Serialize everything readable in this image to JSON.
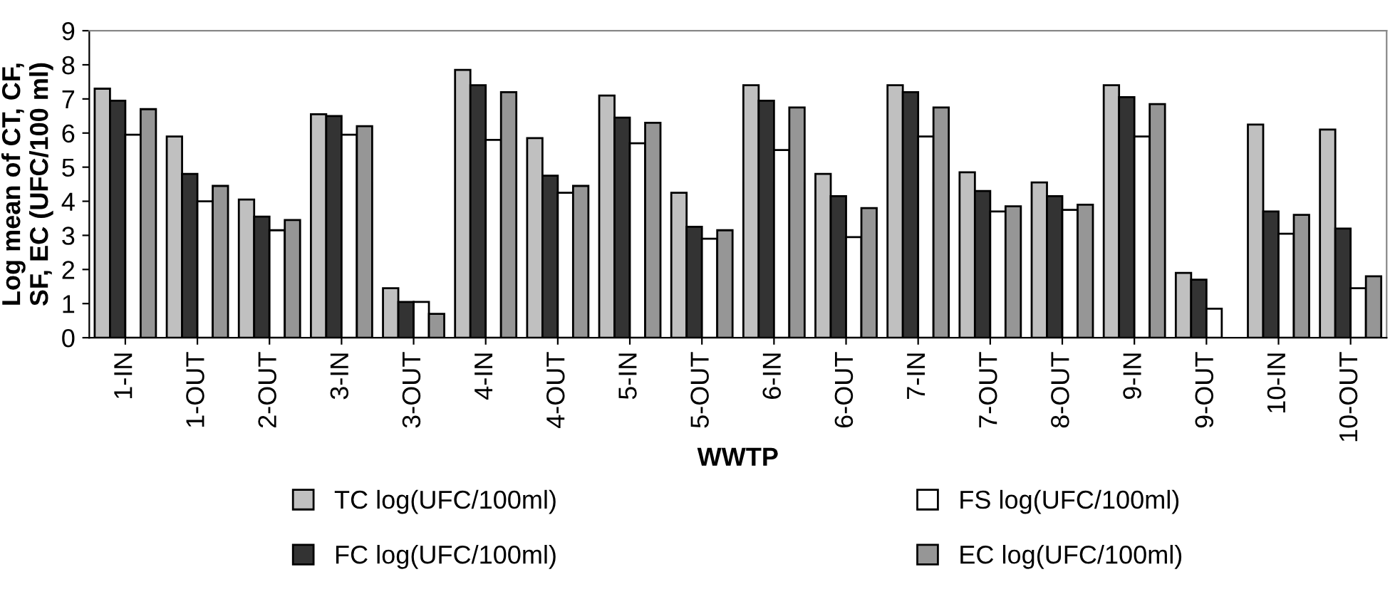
{
  "chart_data": {
    "type": "bar",
    "xlabel": "WWTP",
    "ylabel": "Log mean of CT, CF,\nSF, EC (UFC/100 ml)",
    "categories": [
      "1-IN",
      "1-OUT",
      "2-OUT",
      "3-IN",
      "3-OUT",
      "4-IN",
      "4-OUT",
      "5-IN",
      "5-OUT",
      "6-IN",
      "6-OUT",
      "7-IN",
      "7-OUT",
      "8-OUT",
      "9-IN",
      "9-OUT",
      "10-IN",
      "10-OUT"
    ],
    "series": [
      {
        "name": "TC log(UFC/100ml)",
        "color": "#c0c0c0",
        "values": [
          7.3,
          5.9,
          4.05,
          6.55,
          1.45,
          7.85,
          5.85,
          7.1,
          4.25,
          7.4,
          4.8,
          7.4,
          4.85,
          4.55,
          7.4,
          1.9,
          6.25,
          6.1
        ]
      },
      {
        "name": "FC log(UFC/100ml)",
        "color": "#333333",
        "values": [
          6.95,
          4.8,
          3.55,
          6.5,
          1.05,
          7.4,
          4.75,
          6.45,
          3.25,
          6.95,
          4.15,
          7.2,
          4.3,
          4.15,
          7.05,
          1.7,
          3.7,
          3.2
        ]
      },
      {
        "name": "FS log(UFC/100ml)",
        "color": "#ffffff",
        "values": [
          5.95,
          4.0,
          3.15,
          5.95,
          1.05,
          5.8,
          4.25,
          5.7,
          2.9,
          5.5,
          2.95,
          5.9,
          3.7,
          3.75,
          5.9,
          0.85,
          3.05,
          1.45
        ]
      },
      {
        "name": "EC log(UFC/100ml)",
        "color": "#969696",
        "values": [
          6.7,
          4.45,
          3.45,
          6.2,
          0.7,
          7.2,
          4.45,
          6.3,
          3.15,
          6.75,
          3.8,
          6.75,
          3.85,
          3.9,
          6.85,
          null,
          3.6,
          1.8
        ]
      }
    ],
    "ylim": [
      0,
      9
    ],
    "yticks": [
      0,
      1,
      2,
      3,
      4,
      5,
      6,
      7,
      8,
      9
    ],
    "legend": "bottom",
    "grid": false
  }
}
